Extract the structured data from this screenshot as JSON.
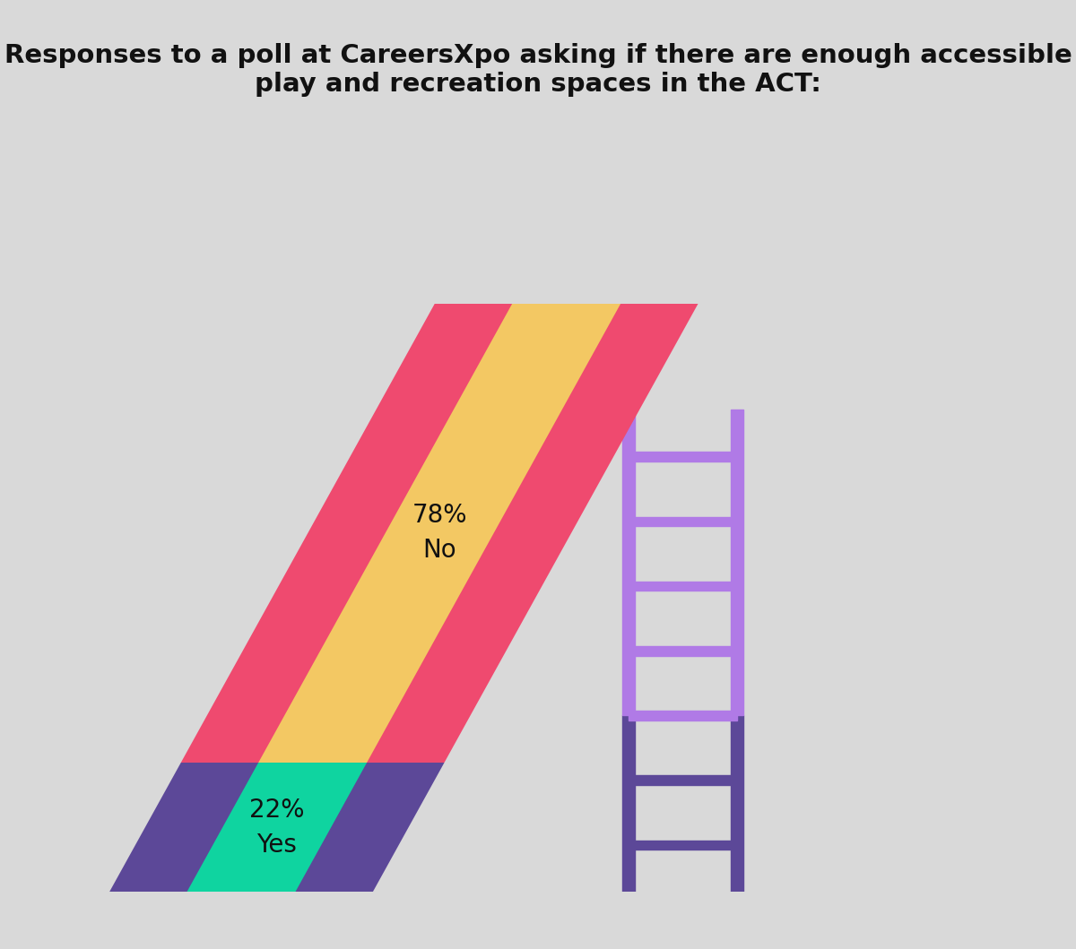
{
  "chart_data": {
    "type": "bar",
    "title": "Responses to a poll at CareersXpo asking if there are enough accessible play and recreation spaces in the ACT:",
    "categories": [
      "Yes",
      "No"
    ],
    "values": [
      22,
      78
    ],
    "value_labels": [
      "22%",
      "78%"
    ],
    "colors": [
      "#0fd4a0",
      "#f3c863"
    ],
    "stacked": true,
    "data_labels": true,
    "tick_labels": false,
    "ylim": [
      0,
      100
    ]
  }
}
